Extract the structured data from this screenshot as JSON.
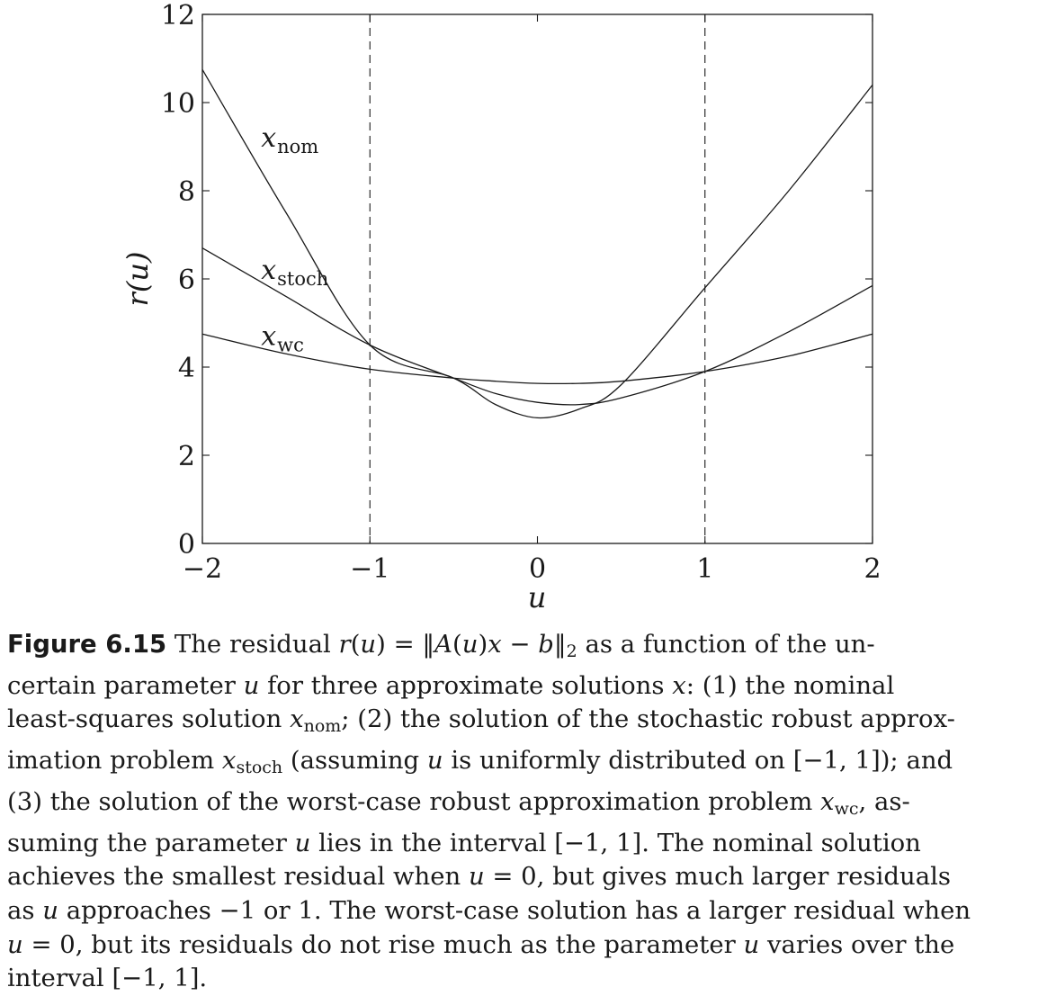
{
  "chart_data": {
    "type": "line",
    "xlabel": "u",
    "ylabel": "r(u)",
    "xlim": [
      -2,
      2
    ],
    "ylim": [
      0,
      12
    ],
    "x_ticks": [
      "−2",
      "−1",
      "0",
      "1",
      "2"
    ],
    "y_ticks": [
      "0",
      "2",
      "4",
      "6",
      "8",
      "10",
      "12"
    ],
    "grid": false,
    "reference_lines": [
      {
        "x": -1,
        "style": "dashed"
      },
      {
        "x": 1,
        "style": "dashed"
      }
    ],
    "x": [
      -2,
      -1.5,
      -1,
      -0.5,
      -0.25,
      0,
      0.25,
      0.5,
      1,
      1.5,
      2
    ],
    "series": [
      {
        "name": "x_nom",
        "label_main": "x",
        "label_sub": "nom",
        "label_at": [
          -1.65,
          9.0
        ],
        "values": [
          10.75,
          7.5,
          4.5,
          3.75,
          3.15,
          2.85,
          3.05,
          3.6,
          5.8,
          8.0,
          10.4
        ]
      },
      {
        "name": "x_stoch",
        "label_main": "x",
        "label_sub": "stoch",
        "label_at": [
          -1.65,
          6.0
        ],
        "values": [
          6.7,
          5.6,
          4.5,
          3.75,
          3.4,
          3.2,
          3.15,
          3.3,
          3.9,
          4.8,
          5.85
        ]
      },
      {
        "name": "x_wc",
        "label_main": "x",
        "label_sub": "wc",
        "label_at": [
          -1.65,
          4.5
        ],
        "values": [
          4.75,
          4.3,
          3.95,
          3.75,
          3.68,
          3.63,
          3.63,
          3.68,
          3.9,
          4.25,
          4.75
        ]
      }
    ]
  },
  "caption": {
    "label": "Figure 6.15",
    "lines": [
      [
        {
          "t": "The residual "
        },
        {
          "t": "r",
          "c": "math"
        },
        {
          "t": "("
        },
        {
          "t": "u",
          "c": "math"
        },
        {
          "t": ") = ‖"
        },
        {
          "t": "A",
          "c": "math"
        },
        {
          "t": "("
        },
        {
          "t": "u",
          "c": "math"
        },
        {
          "t": ")"
        },
        {
          "t": "x",
          "c": "math"
        },
        {
          "t": " − "
        },
        {
          "t": "b",
          "c": "math"
        },
        {
          "t": "‖"
        },
        {
          "t": "2",
          "c": "sub"
        },
        {
          "t": " as a function of the un-"
        }
      ],
      [
        {
          "t": "certain parameter "
        },
        {
          "t": "u",
          "c": "math"
        },
        {
          "t": " for three approximate solutions "
        },
        {
          "t": "x",
          "c": "math"
        },
        {
          "t": ": (1) the nominal"
        }
      ],
      [
        {
          "t": "least-squares solution "
        },
        {
          "t": "x",
          "c": "math"
        },
        {
          "t": "nom",
          "c": "sub"
        },
        {
          "t": "; (2) the solution of the stochastic robust approx-"
        }
      ],
      [
        {
          "t": "imation problem "
        },
        {
          "t": "x",
          "c": "math"
        },
        {
          "t": "stoch",
          "c": "sub"
        },
        {
          "t": " (assuming "
        },
        {
          "t": "u",
          "c": "math"
        },
        {
          "t": " is uniformly distributed on [−1, 1]); and"
        }
      ],
      [
        {
          "t": "(3) the solution of the worst-case robust approximation problem "
        },
        {
          "t": "x",
          "c": "math"
        },
        {
          "t": "wc",
          "c": "sub"
        },
        {
          "t": ", as-"
        }
      ],
      [
        {
          "t": "suming the parameter "
        },
        {
          "t": "u",
          "c": "math"
        },
        {
          "t": " lies in the interval [−1, 1]. The nominal solution"
        }
      ],
      [
        {
          "t": "achieves the smallest residual when "
        },
        {
          "t": "u",
          "c": "math"
        },
        {
          "t": " = 0, but gives much larger residuals"
        }
      ],
      [
        {
          "t": "as "
        },
        {
          "t": "u",
          "c": "math"
        },
        {
          "t": " approaches −1 or 1. The worst-case solution has a larger residual when"
        }
      ],
      [
        {
          "t": "u",
          "c": "math"
        },
        {
          "t": " = 0, but its residuals do not rise much as the parameter "
        },
        {
          "t": "u",
          "c": "math"
        },
        {
          "t": " varies over the"
        }
      ],
      [
        {
          "t": "interval [−1, 1]."
        }
      ]
    ]
  }
}
